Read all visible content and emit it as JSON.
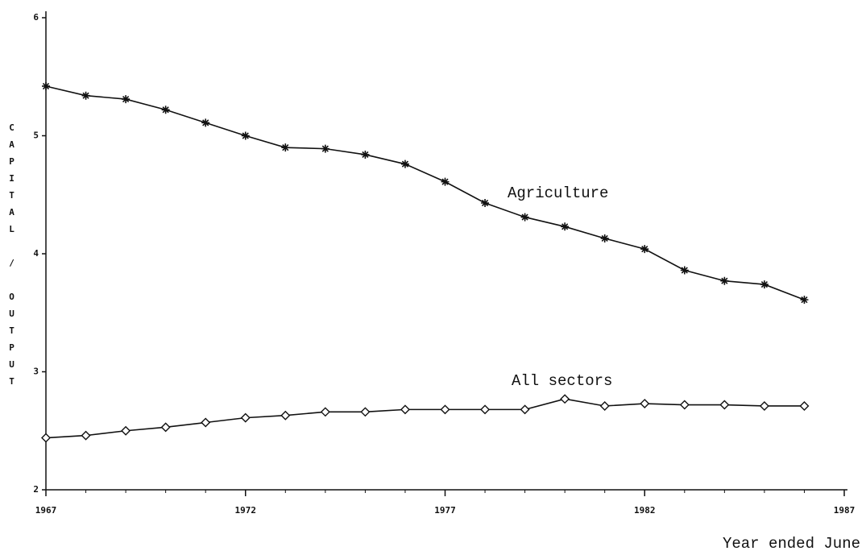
{
  "chart_data": {
    "type": "line",
    "ylabel": "CAPITAL / OUTPUT",
    "xlabel": "Year ended June",
    "x": [
      1967,
      1968,
      1969,
      1970,
      1971,
      1972,
      1973,
      1974,
      1975,
      1976,
      1977,
      1978,
      1979,
      1980,
      1981,
      1982,
      1983,
      1984,
      1985,
      1986
    ],
    "series": [
      {
        "name": "Agriculture",
        "color": "#111111",
        "marker": "star",
        "values": [
          5.42,
          5.34,
          5.31,
          5.22,
          5.11,
          5.0,
          4.9,
          4.89,
          4.84,
          4.76,
          4.61,
          4.43,
          4.31,
          4.23,
          4.13,
          4.04,
          3.86,
          3.77,
          3.74,
          3.61
        ]
      },
      {
        "name": "All sectors",
        "color": "#111111",
        "marker": "diamond",
        "values": [
          2.44,
          2.46,
          2.5,
          2.53,
          2.57,
          2.61,
          2.63,
          2.66,
          2.66,
          2.68,
          2.68,
          2.68,
          2.68,
          2.77,
          2.71,
          2.73,
          2.72,
          2.72,
          2.71,
          2.71
        ]
      }
    ],
    "xlim": [
      1967,
      1987
    ],
    "xticks": [
      1967,
      1972,
      1977,
      1982,
      1987
    ],
    "ylim": [
      2,
      6
    ],
    "yticks": [
      2,
      3,
      4,
      5,
      6
    ],
    "grid": false
  }
}
